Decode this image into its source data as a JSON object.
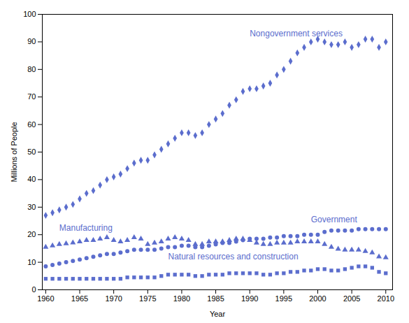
{
  "chart_data": {
    "type": "scatter",
    "x_label": "Year",
    "y_label": "Millions of People",
    "color": "#5b6dcd",
    "x": [
      1960,
      1961,
      1962,
      1963,
      1964,
      1965,
      1966,
      1967,
      1968,
      1969,
      1970,
      1971,
      1972,
      1973,
      1974,
      1975,
      1976,
      1977,
      1978,
      1979,
      1980,
      1981,
      1982,
      1983,
      1984,
      1985,
      1986,
      1987,
      1988,
      1989,
      1990,
      1991,
      1992,
      1993,
      1994,
      1995,
      1996,
      1997,
      1998,
      1999,
      2000,
      2001,
      2002,
      2003,
      2004,
      2005,
      2006,
      2007,
      2008,
      2009,
      2010
    ],
    "series": [
      {
        "marker": "diamond",
        "values": [
          27,
          28,
          29,
          30,
          31,
          33,
          35,
          36,
          38,
          40,
          41,
          42,
          44,
          46,
          47,
          47,
          49,
          51,
          53,
          55,
          57,
          57,
          56,
          57,
          60,
          62,
          64,
          67,
          69,
          72,
          73,
          73,
          74,
          75,
          78,
          80,
          83,
          86,
          88,
          90,
          91,
          90,
          89,
          89,
          90,
          88,
          89,
          91,
          91,
          88,
          90
        ]
      },
      {
        "marker": "triangle",
        "values": [
          15.5,
          16.0,
          16.5,
          16.8,
          17.1,
          17.5,
          18.0,
          18.0,
          18.5,
          19.0,
          18.0,
          17.5,
          18.0,
          19.0,
          18.5,
          16.5,
          17.0,
          17.5,
          18.5,
          19.0,
          18.5,
          18.0,
          16.5,
          16.5,
          17.5,
          17.5,
          17.5,
          18.0,
          18.5,
          18.5,
          18.0,
          17.0,
          16.5,
          16.5,
          17.0,
          17.0,
          17.0,
          17.5,
          17.5,
          17.5,
          17.5,
          16.5,
          15.5,
          14.8,
          14.5,
          14.5,
          14.5,
          14.0,
          13.5,
          12.0,
          11.7
        ]
      },
      {
        "marker": "circle",
        "values": [
          8.5,
          9.0,
          9.5,
          10.0,
          10.5,
          11.0,
          11.5,
          12.0,
          12.5,
          13.0,
          13.0,
          13.5,
          14.0,
          14.5,
          14.5,
          14.5,
          14.5,
          15.0,
          15.5,
          15.5,
          16.0,
          16.0,
          15.5,
          15.5,
          16.0,
          16.5,
          17.0,
          17.0,
          17.5,
          18.0,
          18.5,
          18.5,
          18.5,
          19.0,
          19.0,
          19.5,
          19.5,
          19.5,
          20.0,
          20.0,
          20.0,
          21.0,
          21.5,
          21.5,
          21.5,
          21.5,
          22.0,
          22.0,
          22.0,
          22.0,
          22.0
        ]
      },
      {
        "marker": "square",
        "values": [
          4.0,
          4.0,
          4.0,
          4.0,
          4.0,
          4.0,
          4.0,
          4.0,
          4.0,
          4.0,
          4.0,
          4.0,
          4.5,
          4.5,
          4.5,
          4.5,
          4.5,
          5.0,
          5.5,
          5.5,
          5.5,
          5.5,
          5.0,
          5.0,
          5.5,
          5.5,
          5.5,
          6.0,
          6.0,
          6.0,
          6.0,
          6.0,
          5.5,
          5.5,
          6.0,
          6.0,
          6.5,
          6.5,
          7.0,
          7.0,
          7.5,
          7.5,
          7.0,
          7.0,
          7.5,
          8.0,
          8.5,
          8.5,
          8.0,
          6.5,
          6.0
        ]
      }
    ],
    "annotations": [
      {
        "text": "Nongovernment services",
        "x": 1990,
        "y": 92
      },
      {
        "text": "Manufacturing",
        "x": 1962,
        "y": 21.5
      },
      {
        "text": "Government",
        "x": 1999,
        "y": 24.5
      },
      {
        "text": "Natural resources and construction",
        "x": 1978,
        "y": 11.0
      }
    ],
    "xlim": [
      1959.5,
      2011
    ],
    "ylim": [
      0,
      100
    ],
    "xticks": [
      1960,
      1965,
      1970,
      1975,
      1980,
      1985,
      1990,
      1995,
      2000,
      2005,
      2010
    ],
    "yticks": [
      0,
      10,
      20,
      30,
      40,
      50,
      60,
      70,
      80,
      90,
      100
    ],
    "grid": false
  }
}
